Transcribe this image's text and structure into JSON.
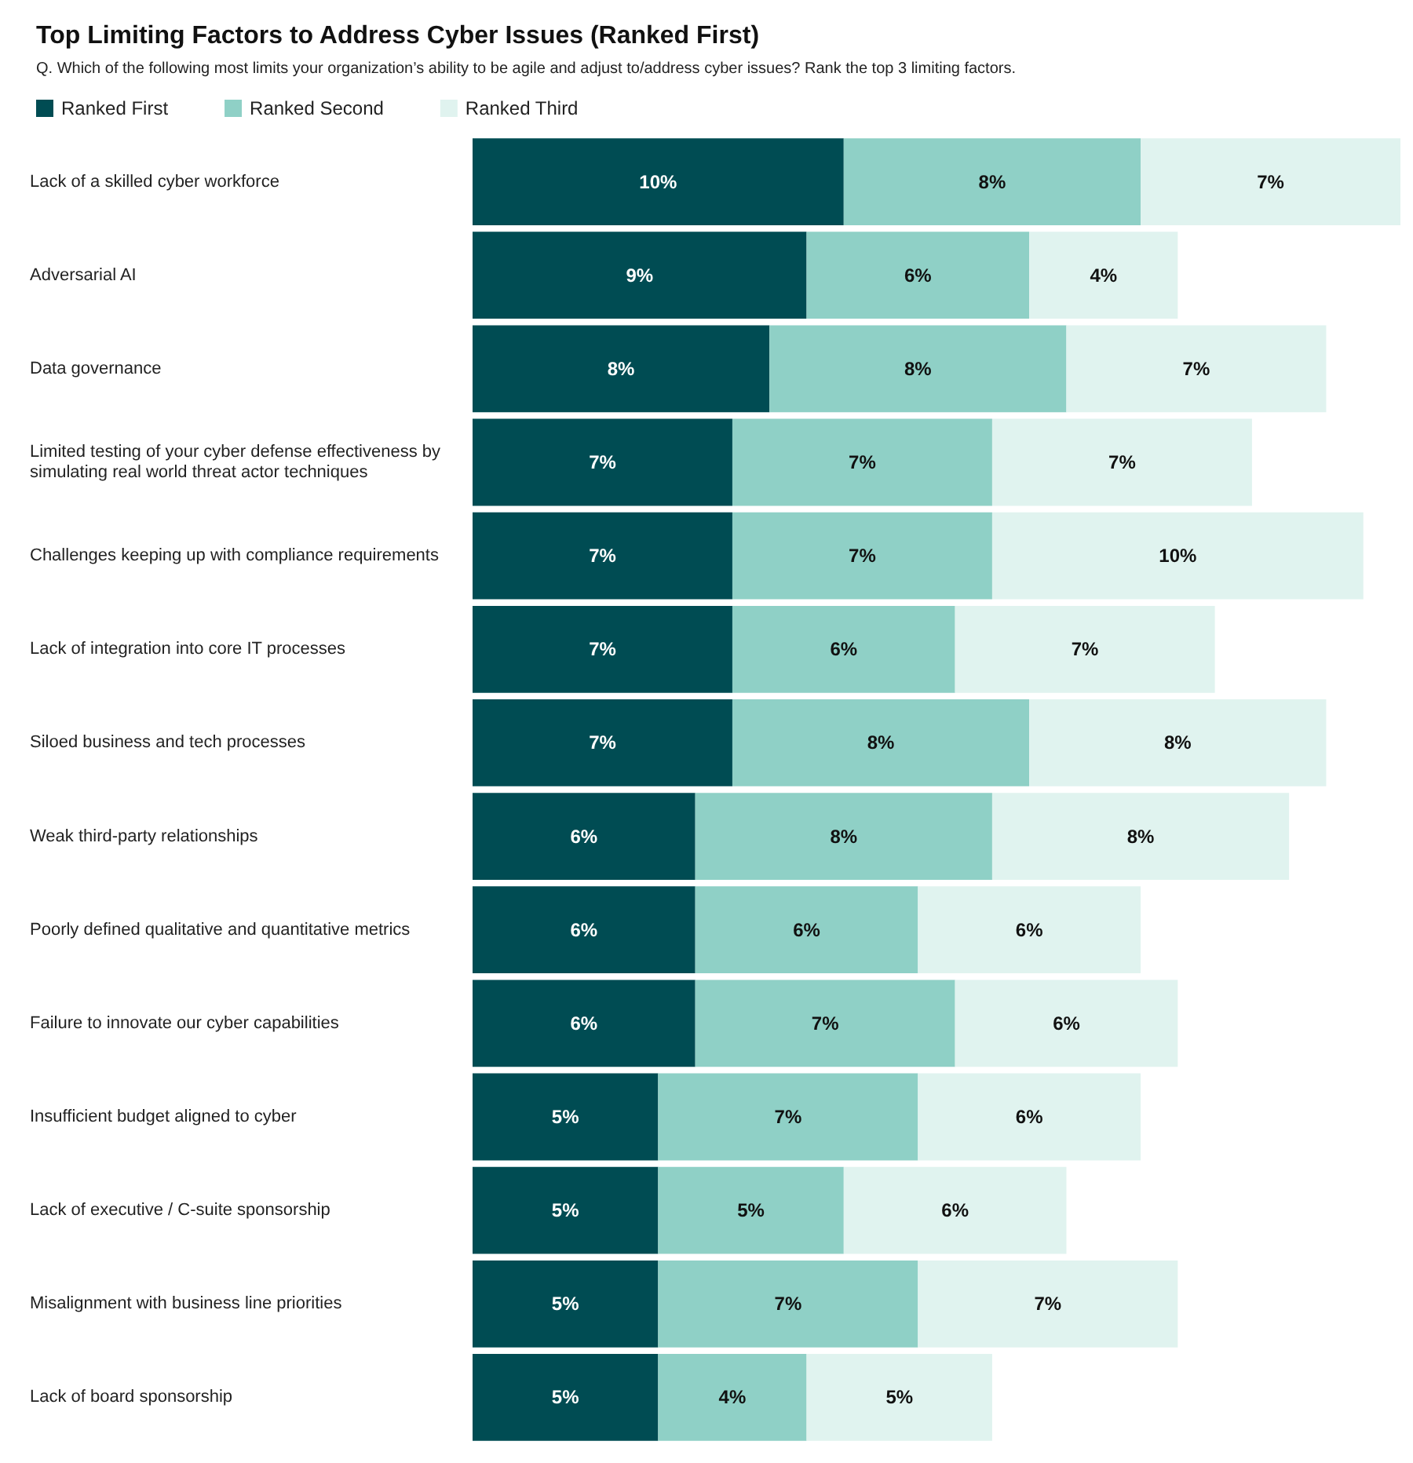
{
  "chart_data": {
    "type": "bar",
    "orientation": "horizontal",
    "stacked": true,
    "title": "Top Limiting Factors to Address Cyber Issues (Ranked First)",
    "subtitle": "Q. Which of the following most limits your organization’s ability to be agile and adjust to/address cyber issues? Rank the top 3 limiting factors.",
    "categories": [
      "Lack of a skilled cyber workforce",
      "Adversarial AI",
      "Data governance",
      "Limited testing of your cyber defense effectiveness by simulating real world threat actor techniques",
      "Challenges keeping up with compliance requirements",
      "Lack of integration into core IT processes",
      "Siloed business and tech processes",
      "Weak third-party relationships",
      "Poorly defined qualitative and quantitative metrics",
      "Failure to innovate our cyber capabilities",
      "Insufficient budget aligned to cyber",
      "Lack of executive / C-suite sponsorship",
      "Misalignment with business line priorities",
      "Lack of board sponsorship"
    ],
    "series": [
      {
        "name": "Ranked First",
        "color": "#004c53",
        "values": [
          10,
          9,
          8,
          7,
          7,
          7,
          7,
          6,
          6,
          6,
          5,
          5,
          5,
          5
        ],
        "value_labels": [
          "10%",
          "9%",
          "8%",
          "7%",
          "7%",
          "7%",
          "7%",
          "6%",
          "6%",
          "6%",
          "5%",
          "5%",
          "5%",
          "5%"
        ]
      },
      {
        "name": "Ranked Second",
        "color": "#8fd0c6",
        "values": [
          8,
          6,
          8,
          7,
          7,
          6,
          8,
          8,
          6,
          7,
          7,
          5,
          7,
          4
        ],
        "value_labels": [
          "8%",
          "6%",
          "8%",
          "7%",
          "7%",
          "6%",
          "8%",
          "8%",
          "6%",
          "7%",
          "7%",
          "5%",
          "7%",
          "4%"
        ]
      },
      {
        "name": "Ranked Third",
        "color": "#e0f3ef",
        "values": [
          7,
          4,
          7,
          7,
          10,
          7,
          8,
          8,
          6,
          6,
          6,
          6,
          7,
          5
        ],
        "value_labels": [
          "7%",
          "4%",
          "7%",
          "7%",
          "10%",
          "7%",
          "8%",
          "8%",
          "6%",
          "6%",
          "6%",
          "6%",
          "7%",
          "5%"
        ]
      }
    ],
    "legend": "top left"
  }
}
